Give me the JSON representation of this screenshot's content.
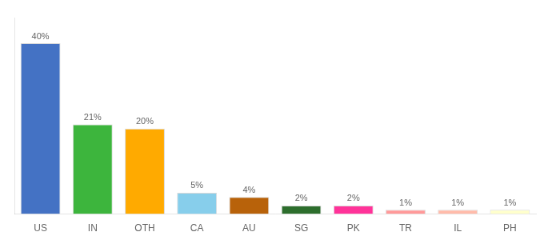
{
  "chart_data": {
    "type": "bar",
    "categories": [
      "US",
      "IN",
      "OTH",
      "CA",
      "AU",
      "SG",
      "PK",
      "TR",
      "IL",
      "PH"
    ],
    "values": [
      40,
      21,
      20,
      5,
      4,
      2,
      2,
      1,
      1,
      1
    ],
    "value_labels": [
      "40%",
      "21%",
      "20%",
      "5%",
      "4%",
      "2%",
      "2%",
      "1%",
      "1%",
      "1%"
    ],
    "colors": [
      "#4472C4",
      "#3DB53D",
      "#FFAA00",
      "#87CEEB",
      "#B8620A",
      "#2D6E2D",
      "#FF3399",
      "#FF9999",
      "#FFBBAA",
      "#FFFFCC"
    ],
    "ylim": [
      0,
      46
    ],
    "grid": false,
    "data_labels": true,
    "tick_labels": "x"
  }
}
